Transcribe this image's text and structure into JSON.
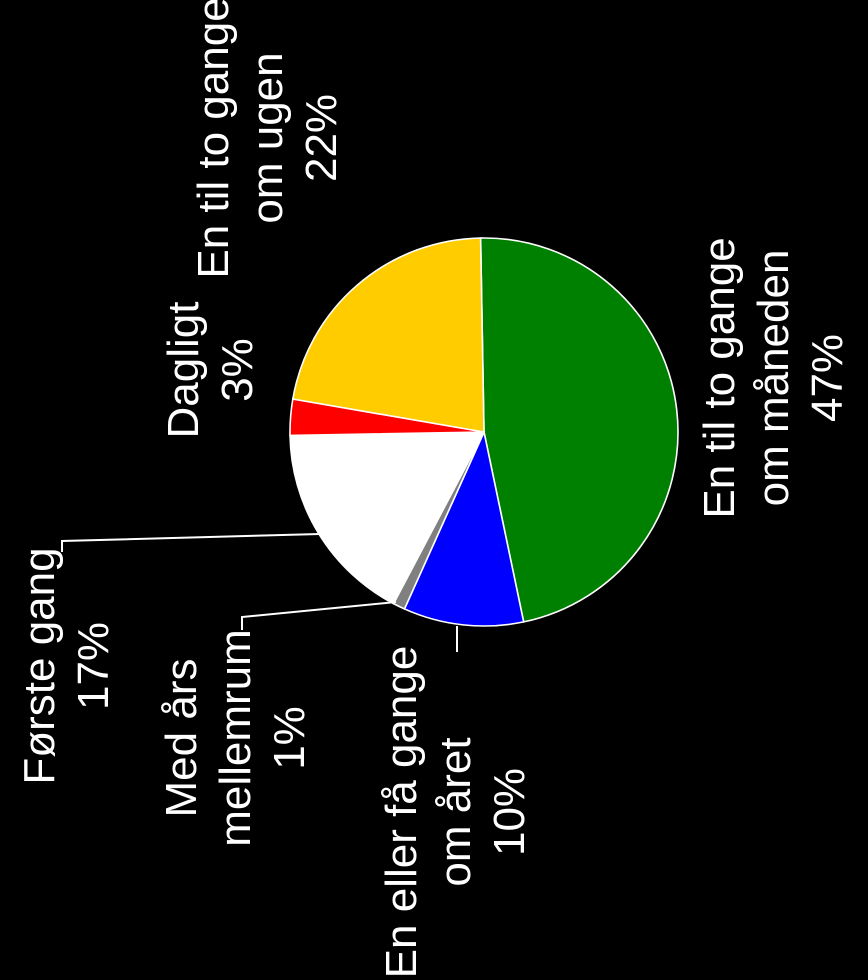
{
  "chart_data": {
    "type": "pie",
    "title": "",
    "slices": [
      {
        "label": [
          "En til to gange",
          "om  måneden"
        ],
        "value_label": "47%",
        "value": 47,
        "color": "#008000"
      },
      {
        "label": [
          "En eller få gange",
          "om  året"
        ],
        "value_label": "10%",
        "value": 10,
        "color": "#0000FF"
      },
      {
        "label": [
          "Med års",
          "mellemrum"
        ],
        "value_label": "1%",
        "value": 1,
        "color": "#808080"
      },
      {
        "label": [
          "Første gang"
        ],
        "value_label": "17%",
        "value": 17,
        "color": "#FFFFFF"
      },
      {
        "label": [
          "Dagligt"
        ],
        "value_label": "3%",
        "value": 3,
        "color": "#FF0000"
      },
      {
        "label": [
          "En til to gange",
          "om ugen"
        ],
        "value_label": "22%",
        "value": 22,
        "color": "#FFCC00"
      }
    ]
  }
}
